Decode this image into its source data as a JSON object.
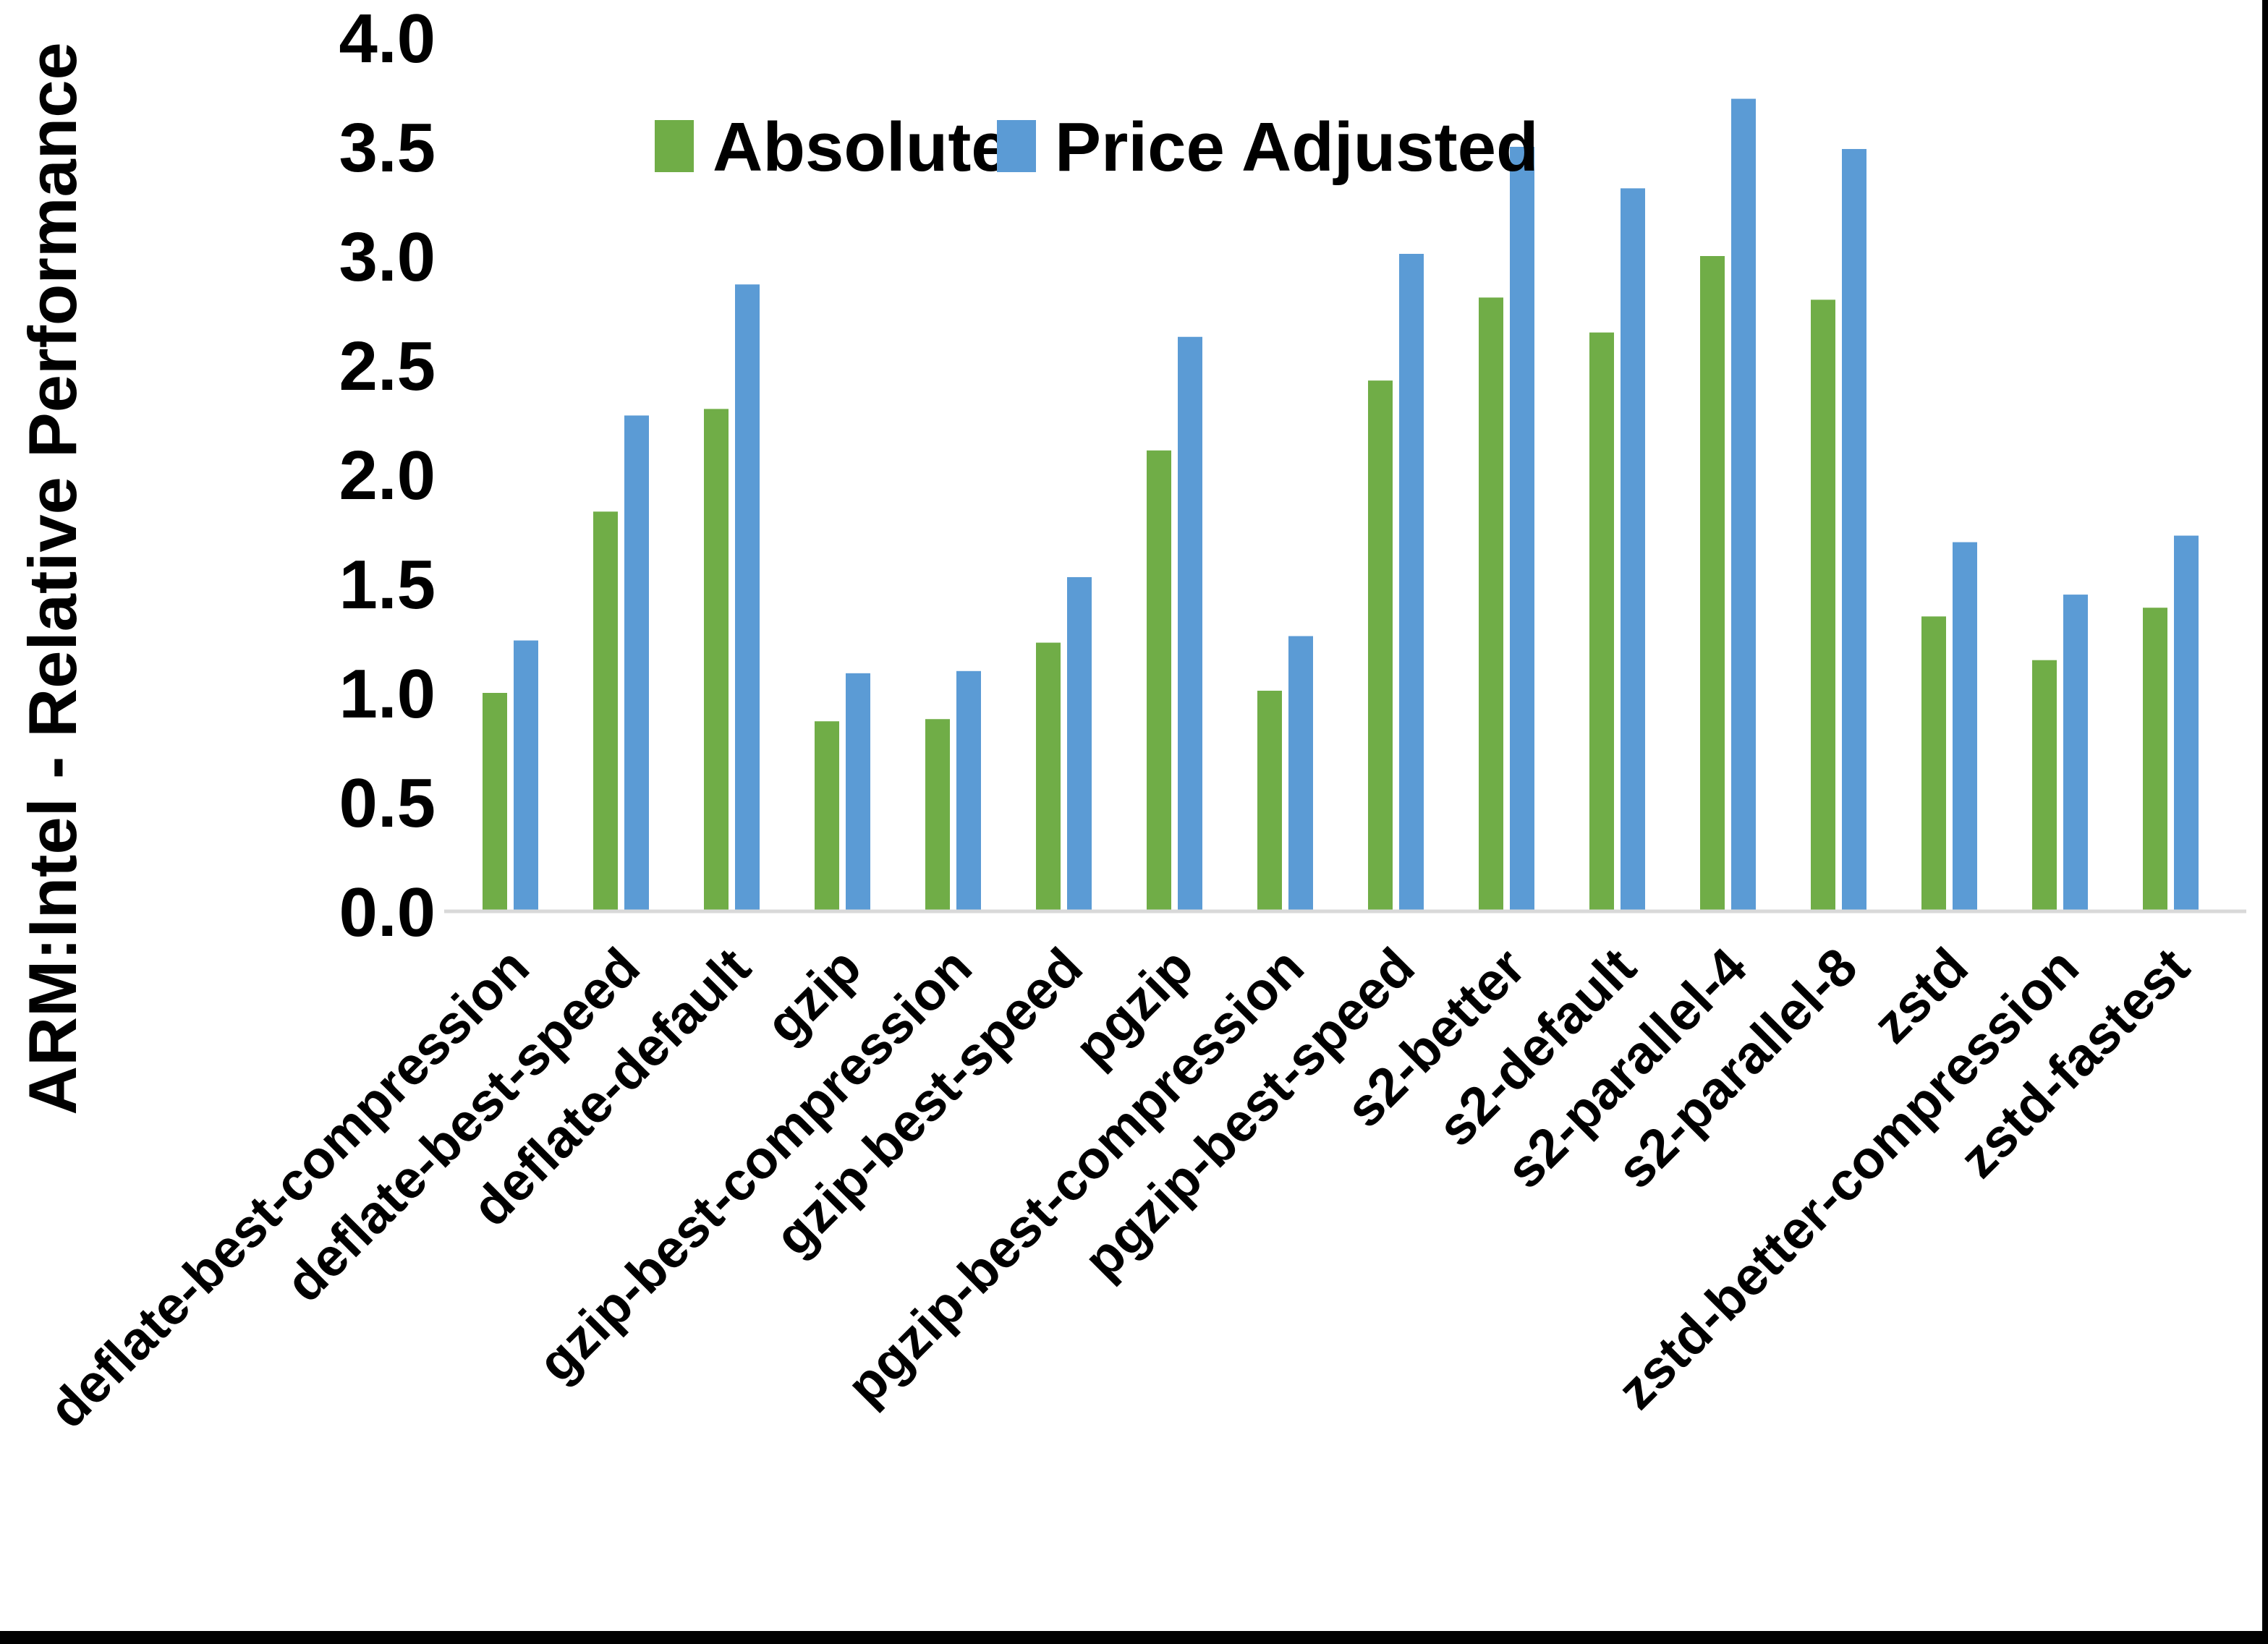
{
  "chart_data": {
    "type": "bar",
    "title": "",
    "ylabel": "ARM:Intel - Relative Performance",
    "xlabel": "",
    "ylim": [
      0.0,
      4.0
    ],
    "ytick_step": 0.5,
    "ytick_labels": [
      "0.0",
      "0.5",
      "1.0",
      "1.5",
      "2.0",
      "2.5",
      "3.0",
      "3.5",
      "4.0"
    ],
    "grid": false,
    "legend_position": "top-inside",
    "categories": [
      "deflate-best-compression",
      "deflate-best-speed",
      "deflate-default",
      "gzip",
      "gzip-best-compression",
      "gzip-best-speed",
      "pgzip",
      "pgzip-best-compression",
      "pgzip-best-speed",
      "s2-better",
      "s2-default",
      "s2-parallel-4",
      "s2-parallel-8",
      "zstd",
      "zstd-better-compression",
      "zstd-fastest"
    ],
    "series": [
      {
        "name": "Absolute",
        "color": "#70AD47",
        "values": [
          1.0,
          1.83,
          2.3,
          0.87,
          0.88,
          1.23,
          2.11,
          1.01,
          2.43,
          2.81,
          2.65,
          3.0,
          2.8,
          1.35,
          1.15,
          1.39
        ]
      },
      {
        "name": "Price Adjusted",
        "color": "#5B9BD5",
        "values": [
          1.24,
          2.27,
          2.87,
          1.09,
          1.1,
          1.53,
          2.63,
          1.26,
          3.01,
          3.5,
          3.31,
          3.72,
          3.49,
          1.69,
          1.45,
          1.72
        ]
      }
    ]
  },
  "colors": {
    "axis_line": "#D9D9D9",
    "text": "#000000",
    "frame": "#000000",
    "background": "#FFFFFF"
  }
}
